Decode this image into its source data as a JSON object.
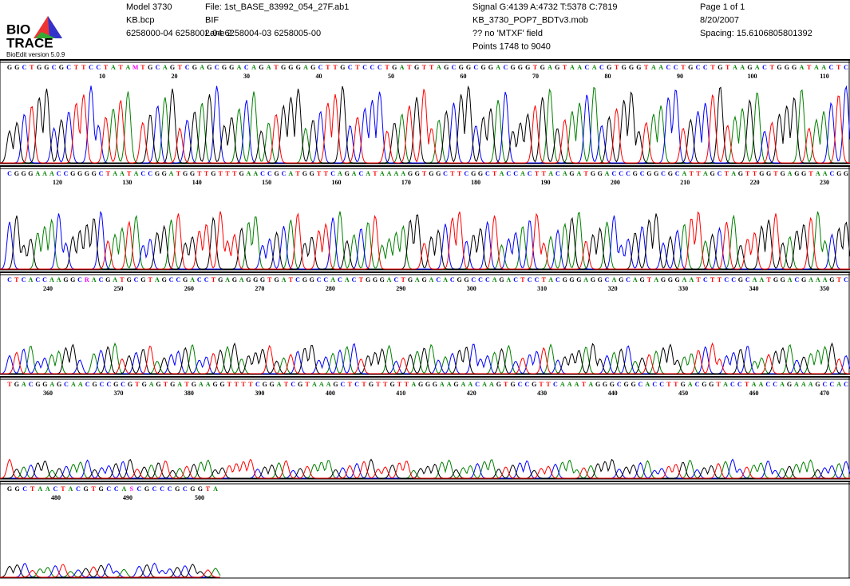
{
  "header": {
    "logo_top": "BIO",
    "logo_bottom": "TRACE",
    "version": "BioEdit version 5.0.9",
    "col1": [
      "Model 3730",
      "KB.bcp",
      "6258000-04 6258002-04 6258004-03 6258005-00"
    ],
    "col2": [
      "File: 1st_BASE_83992_054_27F.ab1",
      "BIF",
      "Lane 2"
    ],
    "col3": [
      "Signal G:4139 A:4732 T:5378 C:7819",
      "KB_3730_POP7_BDTv3.mob",
      "?? no 'MTXF' field",
      "Points 1748 to 9040"
    ],
    "col4": [
      "Page 1 of 1",
      "8/20/2007",
      "Spacing: 15.6106805801392"
    ]
  },
  "panels": [
    {
      "bases": [
        "G",
        "G",
        "C",
        "T",
        "G",
        "G",
        "C",
        "G",
        "C",
        "T",
        "T",
        "C",
        "C",
        "T",
        "A",
        "T",
        "A",
        "M",
        "T",
        "G",
        "C",
        "A",
        "G",
        "T",
        "C",
        "G",
        "A",
        "G",
        "C",
        "G",
        "G",
        "A",
        "C",
        "A",
        "G",
        "A",
        "T",
        "G",
        "G",
        "G",
        "A",
        "G",
        "C",
        "T",
        "T",
        "G",
        "C",
        "T",
        "C",
        "C",
        "C",
        "T",
        "G",
        "A",
        "T",
        "G",
        "T",
        "T",
        "A",
        "G",
        "C",
        "G",
        "G",
        "C",
        "G",
        "G",
        "A",
        "C",
        "G",
        "G",
        "G",
        "T",
        "G",
        "A",
        "G",
        "T",
        "A",
        "A",
        "C",
        "A",
        "C",
        "G",
        "T",
        "G",
        "G",
        "G",
        "T",
        "A",
        "A",
        "C",
        "C",
        "T",
        "G",
        "C",
        "C",
        "T",
        "G",
        "T",
        "A",
        "A",
        "G",
        "A",
        "C",
        "T",
        "G",
        "G",
        "G",
        "A",
        "T",
        "A",
        "A",
        "C",
        "T",
        "C"
      ],
      "numbers": [
        10,
        20,
        30,
        40,
        50,
        60,
        70,
        80,
        90,
        100,
        110
      ]
    },
    {
      "bases": [
        "C",
        "G",
        "G",
        "G",
        "A",
        "A",
        "A",
        "C",
        "C",
        "G",
        "G",
        "G",
        "G",
        "C",
        "T",
        "A",
        "A",
        "T",
        "A",
        "C",
        "C",
        "G",
        "G",
        "A",
        "T",
        "G",
        "G",
        "T",
        "T",
        "G",
        "T",
        "T",
        "T",
        "G",
        "A",
        "A",
        "C",
        "C",
        "G",
        "C",
        "A",
        "T",
        "G",
        "G",
        "T",
        "T",
        "C",
        "A",
        "G",
        "A",
        "C",
        "A",
        "T",
        "A",
        "A",
        "A",
        "A",
        "G",
        "G",
        "T",
        "G",
        "G",
        "C",
        "T",
        "T",
        "C",
        "G",
        "G",
        "C",
        "T",
        "A",
        "C",
        "C",
        "A",
        "C",
        "T",
        "T",
        "A",
        "C",
        "A",
        "G",
        "A",
        "T",
        "G",
        "G",
        "A",
        "C",
        "C",
        "C",
        "G",
        "C",
        "G",
        "G",
        "C",
        "G",
        "C",
        "A",
        "T",
        "T",
        "A",
        "G",
        "C",
        "T",
        "A",
        "G",
        "T",
        "T",
        "G",
        "G",
        "T",
        "G",
        "A",
        "G",
        "G",
        "T",
        "A",
        "A",
        "C",
        "G",
        "G"
      ],
      "numbers": [
        120,
        130,
        140,
        150,
        160,
        170,
        180,
        190,
        200,
        210,
        220,
        230
      ]
    },
    {
      "bases": [
        "C",
        "T",
        "C",
        "A",
        "C",
        "C",
        "A",
        "A",
        "G",
        "G",
        "C",
        "R",
        "A",
        "C",
        "G",
        "A",
        "T",
        "G",
        "C",
        "G",
        "T",
        "A",
        "G",
        "C",
        "C",
        "G",
        "A",
        "C",
        "C",
        "T",
        "G",
        "A",
        "G",
        "A",
        "G",
        "G",
        "G",
        "T",
        "G",
        "A",
        "T",
        "C",
        "G",
        "G",
        "C",
        "C",
        "A",
        "C",
        "A",
        "C",
        "T",
        "G",
        "G",
        "G",
        "A",
        "C",
        "T",
        "G",
        "A",
        "G",
        "A",
        "C",
        "A",
        "C",
        "G",
        "G",
        "C",
        "C",
        "C",
        "A",
        "G",
        "A",
        "C",
        "T",
        "C",
        "C",
        "T",
        "A",
        "C",
        "G",
        "G",
        "G",
        "A",
        "G",
        "G",
        "C",
        "A",
        "G",
        "C",
        "A",
        "G",
        "T",
        "A",
        "G",
        "G",
        "G",
        "A",
        "A",
        "T",
        "C",
        "T",
        "T",
        "C",
        "C",
        "G",
        "C",
        "A",
        "A",
        "T",
        "G",
        "G",
        "A",
        "C",
        "G",
        "A",
        "A",
        "A",
        "G",
        "T",
        "C"
      ],
      "numbers": [
        240,
        250,
        260,
        270,
        280,
        290,
        300,
        310,
        320,
        330,
        340,
        350
      ]
    },
    {
      "bases": [
        "T",
        "G",
        "A",
        "C",
        "G",
        "G",
        "A",
        "G",
        "C",
        "A",
        "A",
        "C",
        "G",
        "C",
        "C",
        "G",
        "C",
        "G",
        "T",
        "G",
        "A",
        "G",
        "T",
        "G",
        "A",
        "T",
        "G",
        "A",
        "A",
        "G",
        "G",
        "T",
        "T",
        "T",
        "T",
        "C",
        "G",
        "G",
        "A",
        "T",
        "C",
        "G",
        "T",
        "A",
        "A",
        "A",
        "G",
        "C",
        "T",
        "C",
        "T",
        "G",
        "T",
        "T",
        "G",
        "T",
        "T",
        "A",
        "G",
        "G",
        "G",
        "A",
        "A",
        "G",
        "A",
        "A",
        "C",
        "A",
        "A",
        "G",
        "T",
        "G",
        "C",
        "C",
        "G",
        "T",
        "T",
        "C",
        "A",
        "A",
        "A",
        "T",
        "A",
        "G",
        "G",
        "G",
        "C",
        "G",
        "G",
        "C",
        "A",
        "C",
        "C",
        "T",
        "T",
        "G",
        "A",
        "C",
        "G",
        "G",
        "T",
        "A",
        "C",
        "C",
        "T",
        "A",
        "A",
        "C",
        "C",
        "A",
        "G",
        "A",
        "A",
        "A",
        "G",
        "C",
        "C",
        "A",
        "C"
      ],
      "numbers": [
        360,
        370,
        380,
        390,
        400,
        410,
        420,
        430,
        440,
        450,
        460,
        470
      ]
    },
    {
      "bases": [
        "G",
        "G",
        "C",
        "T",
        "A",
        "A",
        "C",
        "T",
        "A",
        "C",
        "G",
        "T",
        "G",
        "C",
        "C",
        "A",
        "S",
        "C",
        "G",
        "C",
        "C",
        "C",
        "G",
        "C",
        "G",
        "G",
        "T",
        "A"
      ],
      "numbers": [
        480,
        490,
        500
      ]
    }
  ]
}
